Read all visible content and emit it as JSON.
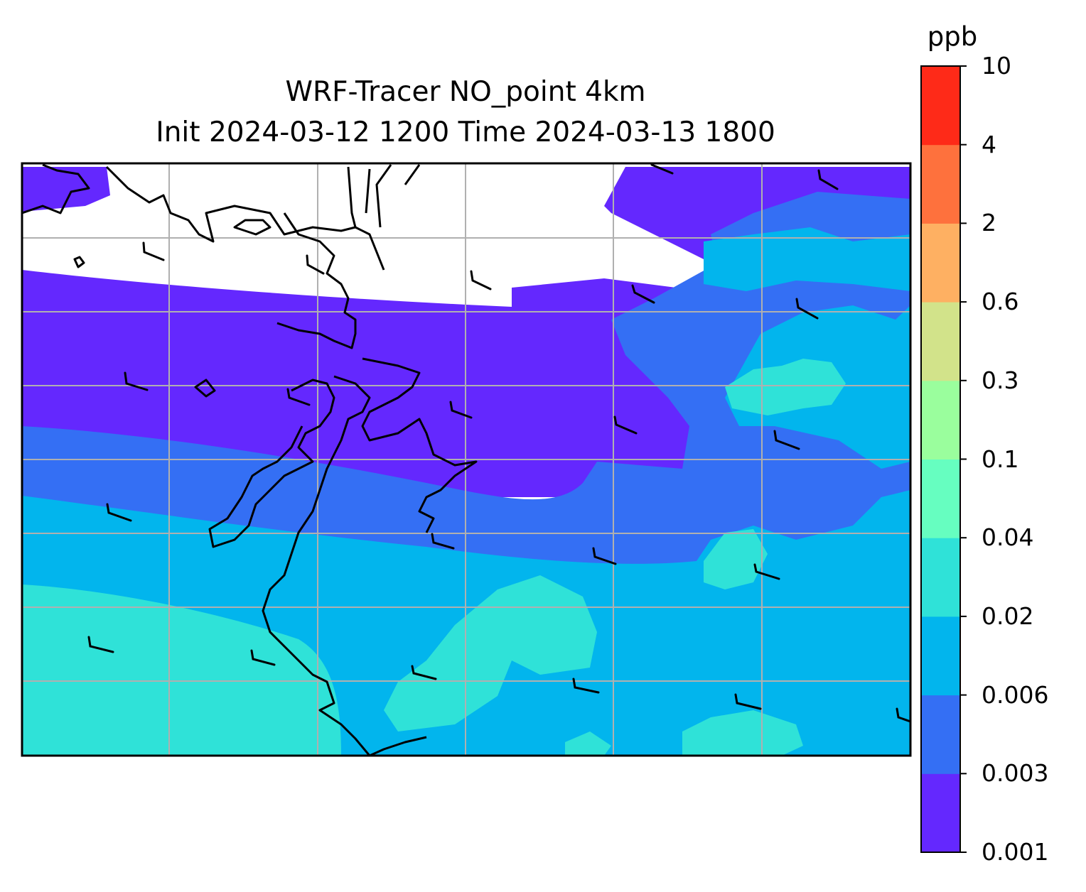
{
  "title": {
    "line1": "WRF-Tracer NO_point 4km",
    "line2": "Init 2024-03-12 1200 Time 2024-03-13 1800"
  },
  "colorbar": {
    "unit": "ppb",
    "levels": [
      "0.001",
      "0.003",
      "0.006",
      "0.02",
      "0.04",
      "0.1",
      "0.3",
      "0.6",
      "2",
      "4",
      "10"
    ],
    "colors": [
      "#6428fe",
      "#346ff4",
      "#02b5ed",
      "#2fe2d8",
      "#66fec0",
      "#9afe9d",
      "#d2e38a",
      "#feb062",
      "#fe713d",
      "#fe2a18"
    ]
  },
  "map": {
    "background": "#ffffff",
    "gridlines": true,
    "gridline_color": "#b0b0b0",
    "coastline_color": "#000000",
    "wind_barbs": true
  }
}
